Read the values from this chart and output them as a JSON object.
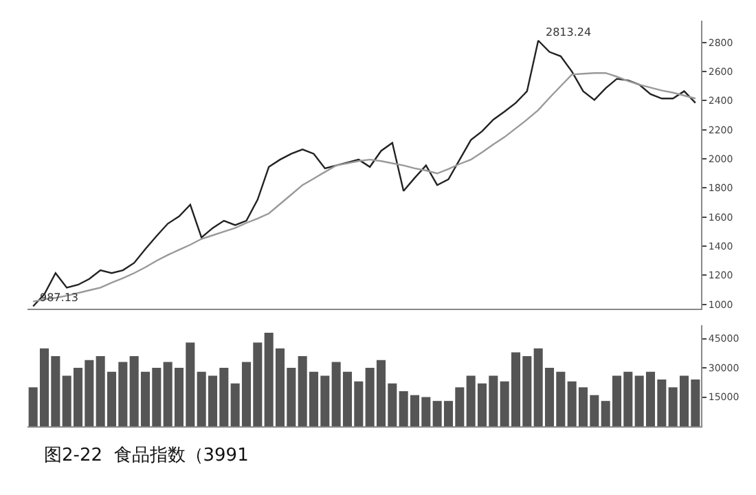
{
  "chart_data": [
    {
      "type": "line",
      "categories": [
        null,
        null,
        null,
        null,
        null,
        null,
        null,
        null,
        null,
        null,
        null,
        null,
        null,
        null,
        null,
        null,
        null,
        null,
        null,
        null,
        null,
        null,
        null,
        null,
        null,
        null,
        null,
        null,
        null,
        null,
        null,
        null,
        null,
        null,
        null,
        null,
        null,
        null,
        null,
        null,
        null,
        null,
        null,
        null,
        null,
        null,
        null,
        null,
        null,
        null,
        null,
        null,
        null,
        null,
        null,
        null,
        null,
        null,
        null,
        null
      ],
      "series": [
        {
          "color": "#222222",
          "values": [
            987,
            1070,
            1215,
            1115,
            1135,
            1175,
            1235,
            1215,
            1235,
            1285,
            1380,
            1470,
            1555,
            1605,
            1685,
            1460,
            1525,
            1575,
            1545,
            1575,
            1720,
            1945,
            1995,
            2035,
            2065,
            2035,
            1935,
            1955,
            1975,
            1995,
            1945,
            2055,
            2110,
            1780,
            1870,
            1955,
            1820,
            1860,
            1995,
            2130,
            2190,
            2270,
            2325,
            2385,
            2465,
            2813,
            2735,
            2705,
            2600,
            2465,
            2405,
            2485,
            2550,
            2540,
            2510,
            2445,
            2415,
            2415,
            2465,
            2385
          ]
        },
        {
          "color": "#999999",
          "values": [
            1020,
            1035,
            1045,
            1060,
            1078,
            1097,
            1115,
            1150,
            1180,
            1215,
            1255,
            1300,
            1340,
            1375,
            1410,
            1450,
            1475,
            1500,
            1525,
            1560,
            1590,
            1625,
            1690,
            1755,
            1820,
            1865,
            1910,
            1955,
            1970,
            1985,
            1995,
            1985,
            1970,
            1955,
            1935,
            1920,
            1900,
            1930,
            1965,
            1995,
            2045,
            2100,
            2150,
            2210,
            2270,
            2335,
            2420,
            2500,
            2580,
            2585,
            2590,
            2590,
            2565,
            2535,
            2510,
            2490,
            2470,
            2455,
            2435,
            2415
          ]
        }
      ],
      "ylim": [
        970,
        2950
      ],
      "yticks": [
        1000,
        1200,
        1400,
        1600,
        1800,
        2000,
        2200,
        2400,
        2600,
        2800
      ],
      "annotations": [
        "2813.24",
        "987.13"
      ],
      "marker": "none",
      "line_style": "solid"
    },
    {
      "type": "bar",
      "categories": [
        null,
        null,
        null,
        null,
        null,
        null,
        null,
        null,
        null,
        null,
        null,
        null,
        null,
        null,
        null,
        null,
        null,
        null,
        null,
        null,
        null,
        null,
        null,
        null,
        null,
        null,
        null,
        null,
        null,
        null,
        null,
        null,
        null,
        null,
        null,
        null,
        null,
        null,
        null,
        null,
        null,
        null,
        null,
        null,
        null,
        null,
        null,
        null,
        null,
        null,
        null,
        null,
        null,
        null,
        null,
        null,
        null,
        null,
        null,
        null
      ],
      "values": [
        20000,
        40000,
        36000,
        26000,
        30000,
        34000,
        36000,
        28000,
        33000,
        36000,
        28000,
        30000,
        33000,
        30000,
        43000,
        28000,
        26000,
        30000,
        22000,
        33000,
        43000,
        48000,
        40000,
        30000,
        36000,
        28000,
        26000,
        33000,
        28000,
        23000,
        30000,
        34000,
        22000,
        18000,
        16000,
        15000,
        13000,
        13000,
        20000,
        26000,
        22000,
        26000,
        23000,
        38000,
        36000,
        40000,
        30000,
        28000,
        23000,
        20000,
        16000,
        13000,
        26000,
        28000,
        26000,
        28000,
        24000,
        20000,
        26000,
        24000
      ],
      "color": "#555555",
      "ylim": [
        0,
        52000
      ],
      "yticks": [
        15000,
        30000,
        45000
      ],
      "annotations": [
        "图2-22  食品指数（3991"
      ]
    }
  ]
}
